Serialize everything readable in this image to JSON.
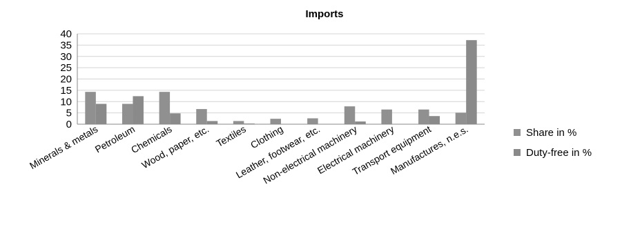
{
  "chart_data": {
    "type": "bar",
    "title": "Imports",
    "xlabel": "",
    "ylabel": "",
    "ylim": [
      0,
      40
    ],
    "yticks": [
      0,
      5,
      10,
      15,
      20,
      25,
      30,
      35,
      40
    ],
    "grid": true,
    "legend_position": "right",
    "categories": [
      "Minerals & metals",
      "Petroleum",
      "Chemicals",
      "Wood, paper, etc.",
      "Textiles",
      "Clothing",
      "Leather, footwear, etc.",
      "Non-electrical machinery",
      "Electrical machinery",
      "Transport equipment",
      "Manufactures, n.e.s."
    ],
    "series": [
      {
        "name": "Share in %",
        "color": "#909090",
        "values": [
          14.3,
          9.0,
          14.3,
          6.7,
          1.4,
          2.4,
          2.6,
          7.9,
          6.5,
          6.5,
          5.1
        ]
      },
      {
        "name": "Duty-free in %",
        "color": "#8a8a8a",
        "values": [
          9.0,
          12.4,
          4.8,
          1.4,
          0.3,
          0,
          0,
          1.2,
          0,
          3.6,
          37.2
        ]
      }
    ]
  }
}
